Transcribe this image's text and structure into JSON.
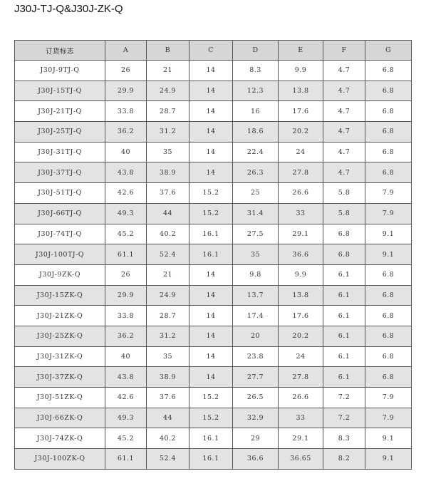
{
  "header": {
    "subtitle": "J30J-TJ-Q&J30J-ZK-Q"
  },
  "table": {
    "columns": [
      "订货标志",
      "A",
      "B",
      "C",
      "D",
      "E",
      "F",
      "G"
    ],
    "rows": [
      [
        "J30J-9TJ-Q",
        "26",
        "21",
        "14",
        "8.3",
        "9.9",
        "4.7",
        "6.8"
      ],
      [
        "J30J-15TJ-Q",
        "29.9",
        "24.9",
        "14",
        "12.3",
        "13.8",
        "4.7",
        "6.8"
      ],
      [
        "J30J-21TJ-Q",
        "33.8",
        "28.7",
        "14",
        "16",
        "17.6",
        "4.7",
        "6.8"
      ],
      [
        "J30J-25TJ-Q",
        "36.2",
        "31.2",
        "14",
        "18.6",
        "20.2",
        "4.7",
        "6.8"
      ],
      [
        "J30J-31TJ-Q",
        "40",
        "35",
        "14",
        "22.4",
        "24",
        "4.7",
        "6.8"
      ],
      [
        "J30J-37TJ-Q",
        "43.8",
        "38.9",
        "14",
        "26.3",
        "27.8",
        "4.7",
        "6.8"
      ],
      [
        "J30J-51TJ-Q",
        "42.6",
        "37.6",
        "15.2",
        "25",
        "26.6",
        "5.8",
        "7.9"
      ],
      [
        "J30J-66TJ-Q",
        "49.3",
        "44",
        "15.2",
        "31.4",
        "33",
        "5.8",
        "7.9"
      ],
      [
        "J30J-74TJ-Q",
        "45.2",
        "40.2",
        "16.1",
        "27.5",
        "29.1",
        "6.8",
        "9.1"
      ],
      [
        "J30J-100TJ-Q",
        "61.1",
        "52.4",
        "16.1",
        "35",
        "36.6",
        "6.8",
        "9.1"
      ],
      [
        "J30J-9ZK-Q",
        "26",
        "21",
        "14",
        "9.8",
        "9.9",
        "6.1",
        "6.8"
      ],
      [
        "J30J-15ZK-Q",
        "29.9",
        "24.9",
        "14",
        "13.7",
        "13.8",
        "6.1",
        "6.8"
      ],
      [
        "J30J-21ZK-Q",
        "33.8",
        "28.7",
        "14",
        "17.4",
        "17.6",
        "6.1",
        "6.8"
      ],
      [
        "J30J-25ZK-Q",
        "36.2",
        "31.2",
        "14",
        "20",
        "20.2",
        "6.1",
        "6.8"
      ],
      [
        "J30J-31ZK-Q",
        "40",
        "35",
        "14",
        "23.8",
        "24",
        "6.1",
        "6.8"
      ],
      [
        "J30J-37ZK-Q",
        "43.8",
        "38.9",
        "14",
        "27.7",
        "27.8",
        "6.1",
        "6.8"
      ],
      [
        "J30J-51ZK-Q",
        "42.6",
        "37.6",
        "15.2",
        "26.5",
        "26.6",
        "7.2",
        "7.9"
      ],
      [
        "J30J-66ZK-Q",
        "49.3",
        "44",
        "15.2",
        "32.9",
        "33",
        "7.2",
        "7.9"
      ],
      [
        "J30J-74ZK-Q",
        "45.2",
        "40.2",
        "16.1",
        "29",
        "29.1",
        "8.3",
        "9.1"
      ],
      [
        "J30J-100ZK-Q",
        "61.1",
        "52.4",
        "16.1",
        "36.6",
        "36.65",
        "8.2",
        "9.1"
      ]
    ]
  }
}
